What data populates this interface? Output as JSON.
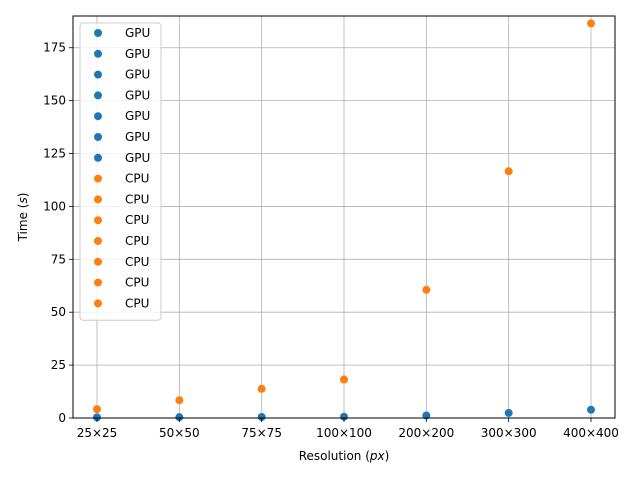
{
  "chart_data": {
    "type": "scatter",
    "categories": [
      "25×25",
      "50×50",
      "75×75",
      "100×100",
      "200×200",
      "300×300",
      "400×400"
    ],
    "xlabel": "Resolution (px)",
    "ylabel": "Time (s)",
    "ylim": [
      0,
      190
    ],
    "yticks": [
      0,
      25,
      50,
      75,
      100,
      125,
      150,
      175
    ],
    "grid": true,
    "legend_position": "top-left",
    "legend_entries": [
      "GPU",
      "GPU",
      "GPU",
      "GPU",
      "GPU",
      "GPU",
      "GPU",
      "CPU",
      "CPU",
      "CPU",
      "CPU",
      "CPU",
      "CPU",
      "CPU"
    ],
    "series": [
      {
        "name": "GPU",
        "color": "#1f77b4",
        "values": [
          0.3,
          0.4,
          0.5,
          0.6,
          1.2,
          2.4,
          3.9
        ]
      },
      {
        "name": "CPU",
        "color": "#ff7f0e",
        "values": [
          4.2,
          8.4,
          13.8,
          18.2,
          60.6,
          116.6,
          186.5
        ]
      }
    ]
  }
}
